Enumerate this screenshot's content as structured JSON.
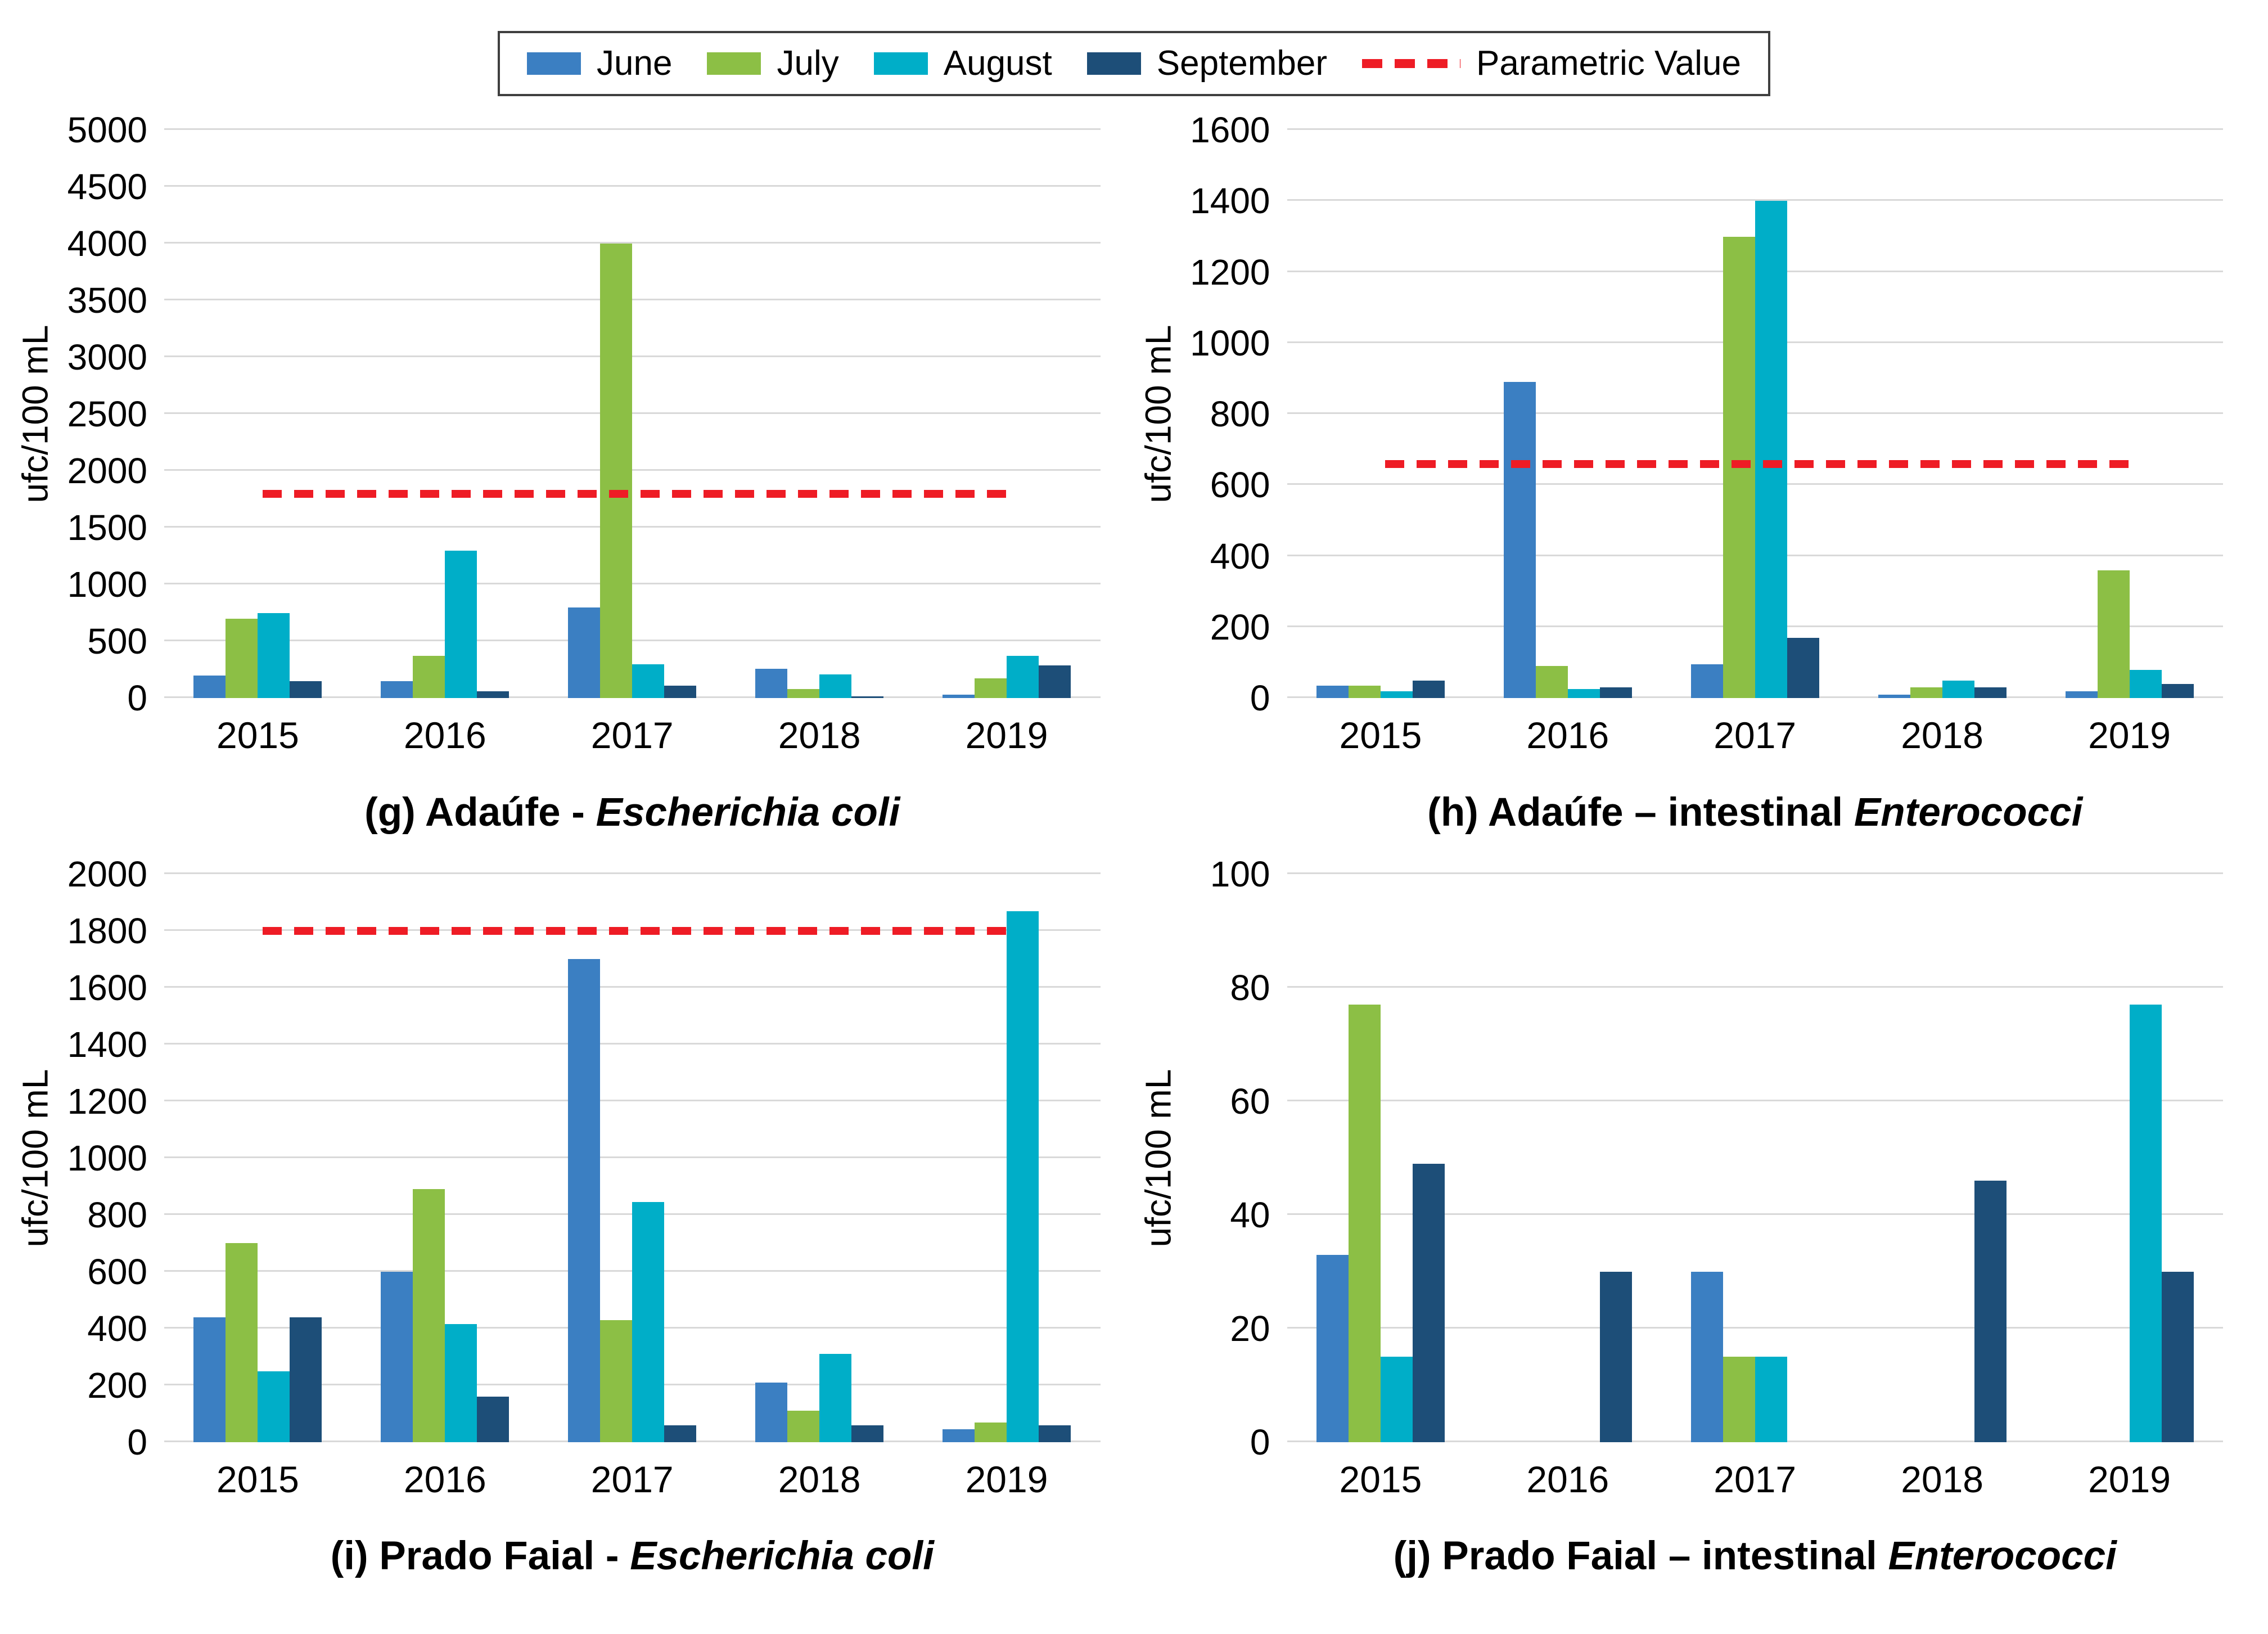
{
  "figure": {
    "ylabel": "ufc/100 mL",
    "legend": {
      "series": [
        {
          "name": "June",
          "color": "#3b7fc2"
        },
        {
          "name": "July",
          "color": "#8cbf45"
        },
        {
          "name": "August",
          "color": "#00aec8"
        },
        {
          "name": "September",
          "color": "#1d4e78"
        }
      ],
      "parametric": {
        "label": "Parametric Value",
        "color": "#ee1c25"
      }
    }
  },
  "chart_data": [
    {
      "id": "g",
      "type": "bar",
      "caption_prefix": "(g) Adaúfe - ",
      "caption_species": "Escherichia coli",
      "ylabel": "ufc/100 mL",
      "ylim": [
        0,
        5000
      ],
      "ytick_step": 500,
      "grid": true,
      "legend_position": "top-shared",
      "categories": [
        "2015",
        "2016",
        "2017",
        "2018",
        "2019"
      ],
      "series": [
        {
          "name": "June",
          "values": [
            200,
            150,
            800,
            260,
            30
          ]
        },
        {
          "name": "July",
          "values": [
            700,
            370,
            4000,
            80,
            175
          ]
        },
        {
          "name": "August",
          "values": [
            750,
            1300,
            300,
            210,
            370
          ]
        },
        {
          "name": "September",
          "values": [
            150,
            60,
            110,
            15,
            290
          ]
        }
      ],
      "parametric_value": 1800
    },
    {
      "id": "h",
      "type": "bar",
      "caption_prefix": "(h) Adaúfe – intestinal ",
      "caption_species": "Enterococci",
      "ylabel": "ufc/100 mL",
      "ylim": [
        0,
        1600
      ],
      "ytick_step": 200,
      "grid": true,
      "legend_position": "top-shared",
      "categories": [
        "2015",
        "2016",
        "2017",
        "2018",
        "2019"
      ],
      "series": [
        {
          "name": "June",
          "values": [
            35,
            890,
            95,
            10,
            20
          ]
        },
        {
          "name": "July",
          "values": [
            35,
            90,
            1300,
            30,
            360
          ]
        },
        {
          "name": "August",
          "values": [
            20,
            25,
            1400,
            50,
            80
          ]
        },
        {
          "name": "September",
          "values": [
            50,
            30,
            170,
            30,
            40
          ]
        }
      ],
      "parametric_value": 660
    },
    {
      "id": "i",
      "type": "bar",
      "caption_prefix": "(i) Prado Faial - ",
      "caption_species": "Escherichia coli",
      "ylabel": "ufc/100 mL",
      "ylim": [
        0,
        2000
      ],
      "ytick_step": 200,
      "grid": true,
      "legend_position": "top-shared",
      "categories": [
        "2015",
        "2016",
        "2017",
        "2018",
        "2019"
      ],
      "series": [
        {
          "name": "June",
          "values": [
            440,
            600,
            1700,
            210,
            45
          ]
        },
        {
          "name": "July",
          "values": [
            700,
            890,
            430,
            110,
            70
          ]
        },
        {
          "name": "August",
          "values": [
            250,
            415,
            845,
            310,
            1870
          ]
        },
        {
          "name": "September",
          "values": [
            440,
            160,
            60,
            60,
            60
          ]
        }
      ],
      "parametric_value": 1800
    },
    {
      "id": "j",
      "type": "bar",
      "caption_prefix": "(j) Prado Faial – intestinal ",
      "caption_species": "Enterococci",
      "ylabel": "ufc/100 mL",
      "ylim": [
        0,
        100
      ],
      "ytick_step": 20,
      "grid": true,
      "legend_position": "top-shared",
      "categories": [
        "2015",
        "2016",
        "2017",
        "2018",
        "2019"
      ],
      "series": [
        {
          "name": "June",
          "values": [
            33,
            0,
            30,
            0,
            0
          ]
        },
        {
          "name": "July",
          "values": [
            77,
            0,
            15,
            0,
            0
          ]
        },
        {
          "name": "August",
          "values": [
            15,
            0,
            15,
            0,
            77
          ]
        },
        {
          "name": "September",
          "values": [
            49,
            30,
            0,
            46,
            30
          ]
        }
      ],
      "parametric_value": null
    }
  ]
}
